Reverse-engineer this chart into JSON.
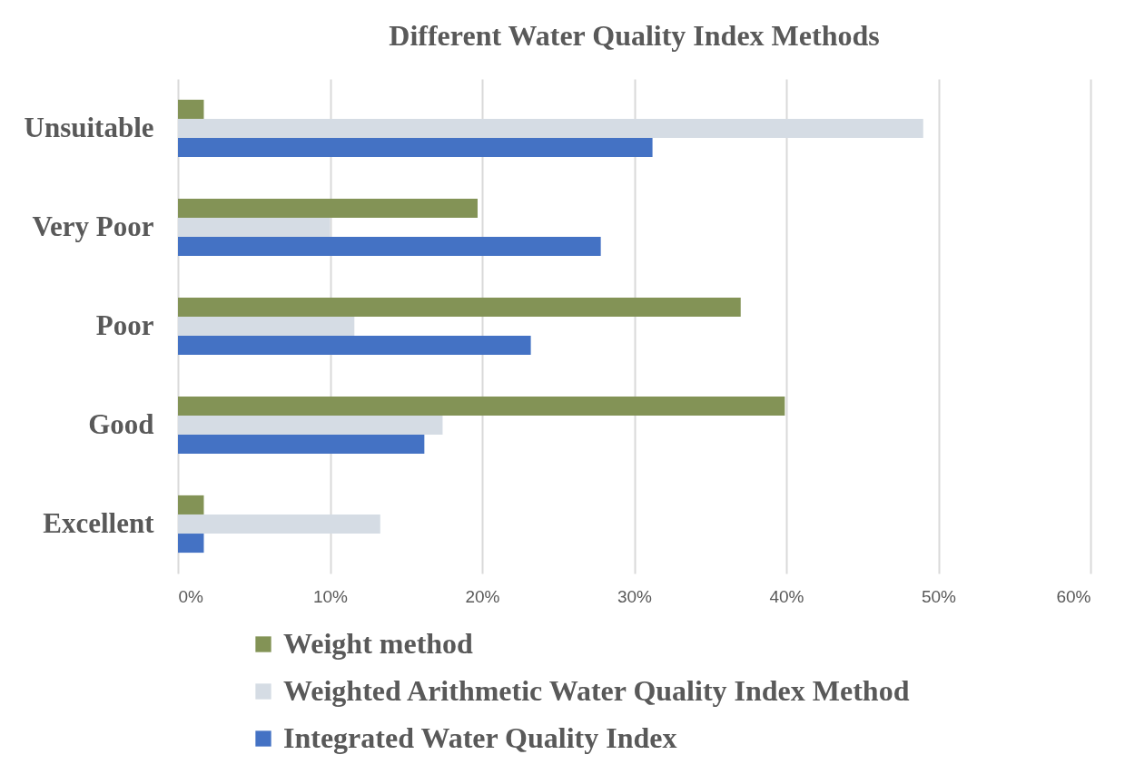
{
  "chart_data": {
    "type": "bar",
    "orientation": "horizontal",
    "title": "Different Water Quality Index Methods",
    "categories": [
      "Unsuitable",
      "Very Poor",
      "Poor",
      "Good",
      "Excellent"
    ],
    "series": [
      {
        "name": "Weight method",
        "color": "#839356",
        "values": [
          1.7,
          19.7,
          37.0,
          39.9,
          1.7
        ]
      },
      {
        "name": "Weighted Arithmetic Water Quality Index Method",
        "color": "#d5dce4",
        "values": [
          49.0,
          10.0,
          11.6,
          17.4,
          13.3
        ]
      },
      {
        "name": "Integrated Water Quality Index",
        "color": "#4472c4",
        "values": [
          31.2,
          27.8,
          23.2,
          16.2,
          1.7
        ]
      }
    ],
    "xlim": [
      0,
      60
    ],
    "xticks": [
      {
        "value": 0,
        "label": "0%"
      },
      {
        "value": 10,
        "label": "10%"
      },
      {
        "value": 20,
        "label": "20%"
      },
      {
        "value": 30,
        "label": "30%"
      },
      {
        "value": 40,
        "label": "40%"
      },
      {
        "value": 50,
        "label": "50%"
      },
      {
        "value": 60,
        "label": "60%"
      }
    ],
    "grid": "x",
    "legend": "bottom"
  }
}
